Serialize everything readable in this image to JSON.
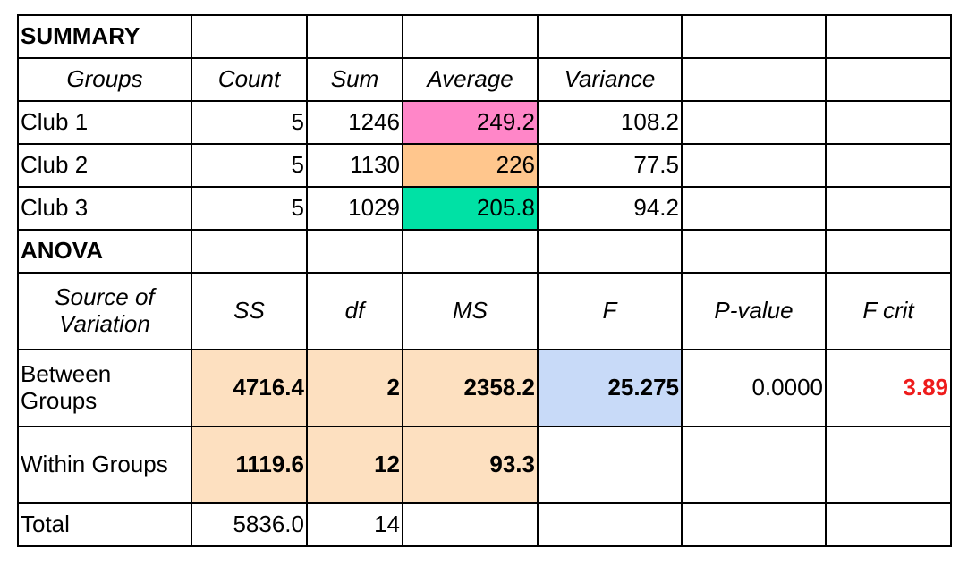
{
  "summary": {
    "title": "SUMMARY",
    "headers": [
      "Groups",
      "Count",
      "Sum",
      "Average",
      "Variance"
    ],
    "rows": [
      {
        "group": "Club 1",
        "count": "5",
        "sum": "1246",
        "average": "249.2",
        "variance": "108.2"
      },
      {
        "group": "Club 2",
        "count": "5",
        "sum": "1130",
        "average": "226",
        "variance": "77.5"
      },
      {
        "group": "Club 3",
        "count": "5",
        "sum": "1029",
        "average": "205.8",
        "variance": "94.2"
      }
    ],
    "average_colors": [
      "#ff86c8",
      "#ffc68d",
      "#00e1a5"
    ]
  },
  "anova": {
    "title": "ANOVA",
    "headers": {
      "source": "Source of Variation",
      "ss": "SS",
      "df": "df",
      "ms": "MS",
      "f": "F",
      "p": "P-value",
      "fcrit": "F crit"
    },
    "between": {
      "label": "Between Groups",
      "ss": "4716.4",
      "df": "2",
      "ms": "2358.2",
      "f": "25.275",
      "p": "0.0000",
      "fcrit": "3.89"
    },
    "within": {
      "label": "Within Groups",
      "ss": "1119.6",
      "df": "12",
      "ms": "93.3"
    },
    "total": {
      "label": "Total",
      "ss": "5836.0",
      "df": "14"
    }
  },
  "colors": {
    "highlight_peach": "#fde0c0",
    "highlight_blue": "#c8daf8",
    "fcrit_red": "#ee1c1c"
  }
}
